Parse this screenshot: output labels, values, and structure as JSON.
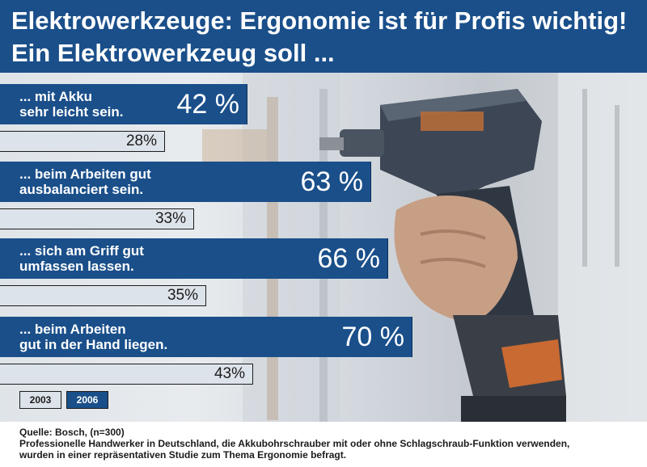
{
  "header": {
    "title_line1": "Elektrowerkzeuge: Ergonomie ist für Profis wichtig!",
    "title_line2": "Ein Elektrowerkzeug soll ..."
  },
  "colors": {
    "brand_blue": "#1a4f8a",
    "bar_2003": "#dde3ea"
  },
  "chart_data": {
    "type": "bar",
    "orientation": "horizontal",
    "categories": [
      [
        "... mit  Akku",
        "sehr leicht sein."
      ],
      [
        "... beim Arbeiten gut",
        "ausbalanciert sein."
      ],
      [
        "... sich am Griff gut",
        "umfassen lassen."
      ],
      [
        "... beim Arbeiten",
        "gut in der Hand liegen."
      ]
    ],
    "series": [
      {
        "name": "2006",
        "values": [
          42,
          63,
          66,
          70
        ],
        "labels": [
          "42 %",
          "63 %",
          "66 %",
          "70 %"
        ]
      },
      {
        "name": "2003",
        "values": [
          28,
          33,
          35,
          43
        ],
        "labels": [
          "28%",
          "33%",
          "35%",
          "43%"
        ]
      }
    ],
    "unit": "%",
    "legend": {
      "position": "bottom-left",
      "entries": [
        "2003",
        "2006"
      ]
    }
  },
  "footer": {
    "source": "Quelle: Bosch, (n=300)",
    "note_line1": "Professionelle Handwerker in Deutschland, die Akkubohrschrauber mit oder ohne Schlagschraub-Funktion verwenden,",
    "note_line2": "wurden in einer repräsentativen Studie zum Thema Ergonomie befragt."
  }
}
